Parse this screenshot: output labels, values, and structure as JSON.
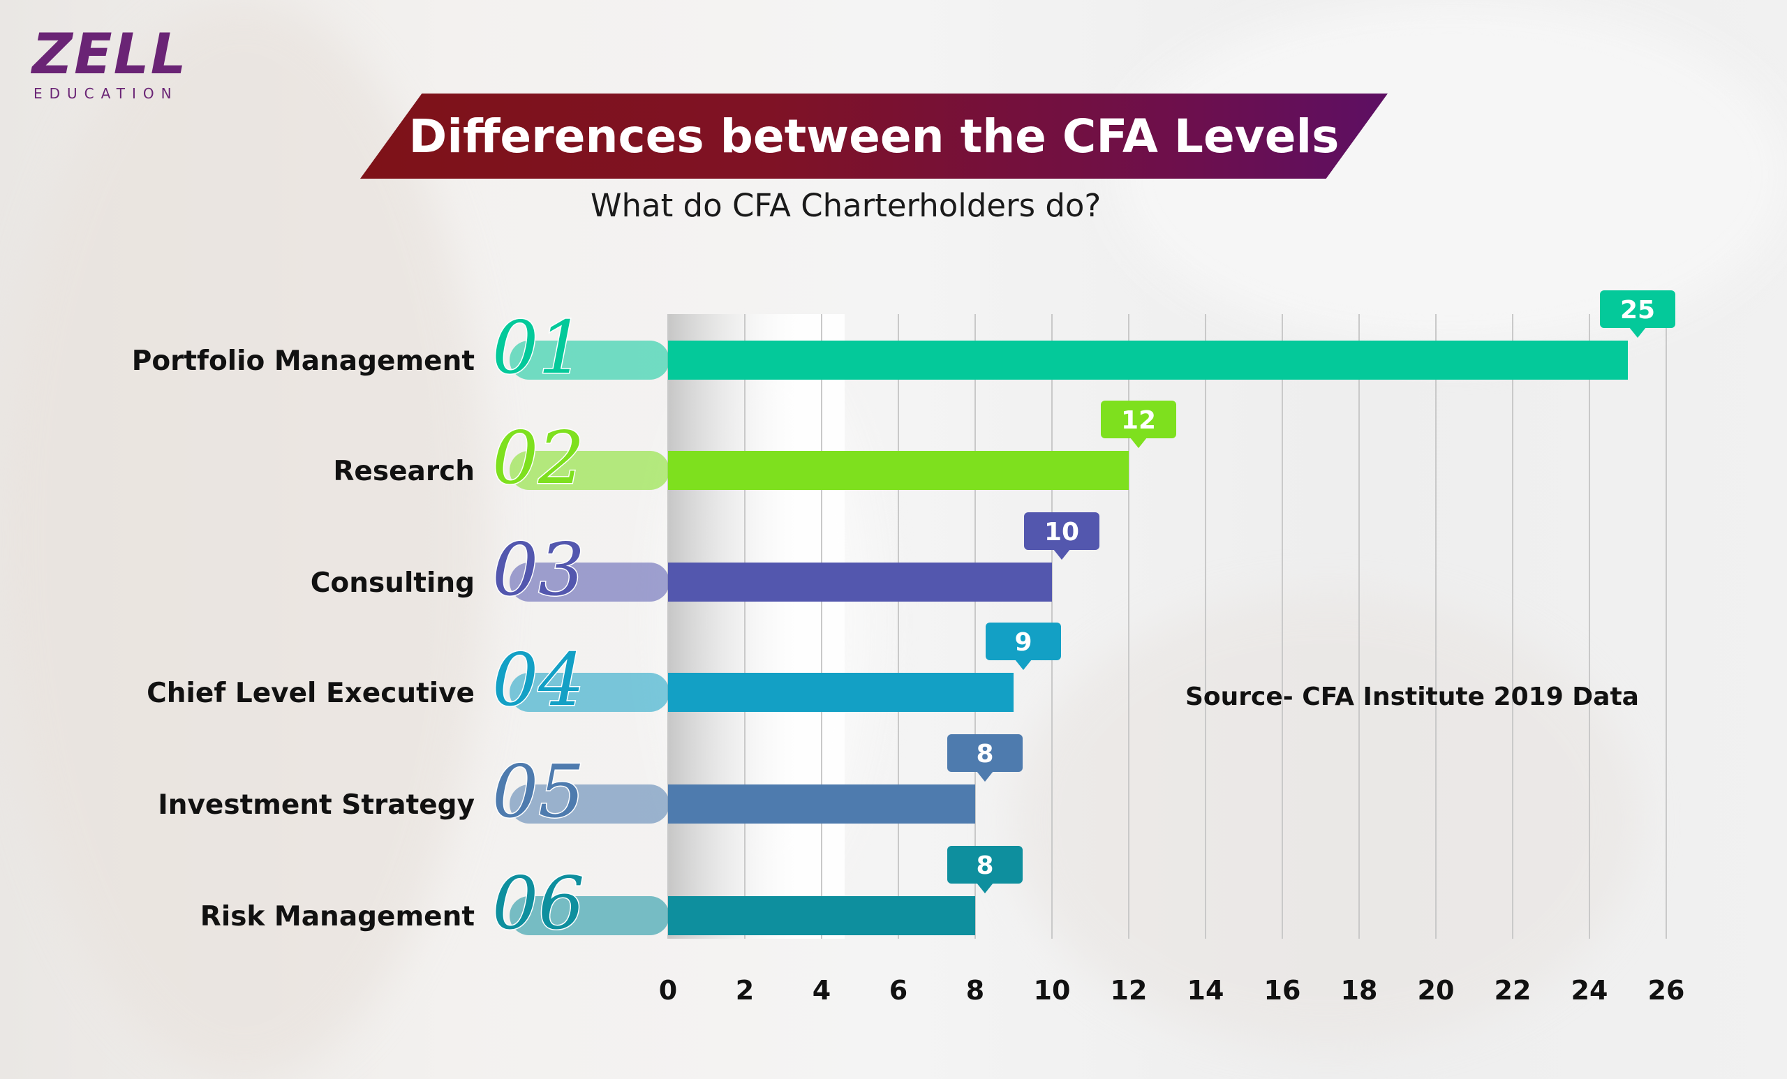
{
  "logo": {
    "main": "ZELL",
    "sub": "EDUCATION"
  },
  "chart_data": {
    "type": "bar",
    "orientation": "horizontal",
    "title": "Differences between the CFA Levels",
    "subtitle": "What do CFA Charterholders do?",
    "source": "Source- CFA Institute 2019 Data",
    "categories": [
      "Portfolio Management",
      "Research",
      "Consulting",
      "Chief Level Executive",
      "Investment Strategy",
      "Risk Management"
    ],
    "numbers": [
      "01",
      "02",
      "03",
      "04",
      "05",
      "06"
    ],
    "values": [
      25,
      12,
      10,
      9,
      8,
      8
    ],
    "colors": [
      "#04c99a",
      "#7ee01e",
      "#5357ae",
      "#13a0c5",
      "#4e7bae",
      "#0e8f9e"
    ],
    "xlim": [
      0,
      26
    ],
    "xticks": [
      0,
      2,
      4,
      6,
      8,
      10,
      12,
      14,
      16,
      18,
      20,
      22,
      24,
      26
    ],
    "grid": true
  }
}
